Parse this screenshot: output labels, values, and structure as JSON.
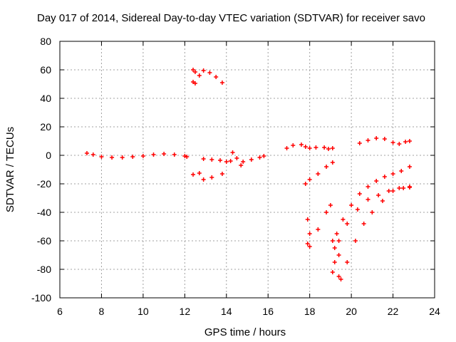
{
  "chart_data": {
    "type": "scatter",
    "title": "Day 017 of 2014, Sidereal Day-to-day VTEC variation (SDTVAR) for receiver savo",
    "xlabel": "GPS time / hours",
    "ylabel": "SDTVAR / TECUs",
    "xlim": [
      6,
      24
    ],
    "ylim": [
      -100,
      80
    ],
    "xticks": [
      6,
      8,
      10,
      12,
      14,
      16,
      18,
      20,
      22,
      24
    ],
    "yticks": [
      -100,
      -80,
      -60,
      -40,
      -20,
      0,
      20,
      40,
      60,
      80
    ],
    "grid": true,
    "marker": "+",
    "color": "#ff0000",
    "series": [
      {
        "values": [
          [
            7.3,
            1.5
          ],
          [
            7.6,
            0.5
          ],
          [
            8.0,
            -1.0
          ],
          [
            8.5,
            -1.5
          ],
          [
            9.0,
            -1.5
          ],
          [
            9.5,
            -1.0
          ],
          [
            10.0,
            -0.5
          ],
          [
            10.5,
            0.5
          ],
          [
            11.0,
            1.0
          ],
          [
            11.5,
            0.5
          ],
          [
            12.0,
            -0.5
          ],
          [
            12.1,
            -1.0
          ],
          [
            12.4,
            60.0
          ],
          [
            12.5,
            58.5
          ],
          [
            12.4,
            51.5
          ],
          [
            12.5,
            50.5
          ],
          [
            12.7,
            56.0
          ],
          [
            12.9,
            59.5
          ],
          [
            13.2,
            58.0
          ],
          [
            13.5,
            55.0
          ],
          [
            13.8,
            51.0
          ],
          [
            12.4,
            -13.5
          ],
          [
            12.7,
            -12.5
          ],
          [
            12.9,
            -17.0
          ],
          [
            13.3,
            -15.5
          ],
          [
            13.8,
            -13.0
          ],
          [
            12.9,
            -2.5
          ],
          [
            13.3,
            -3.0
          ],
          [
            13.7,
            -3.5
          ],
          [
            14.0,
            -4.5
          ],
          [
            14.2,
            -4.0
          ],
          [
            14.3,
            2.0
          ],
          [
            14.5,
            -2.0
          ],
          [
            14.7,
            -7.0
          ],
          [
            14.8,
            -4.5
          ],
          [
            15.2,
            -3.0
          ],
          [
            15.6,
            -1.5
          ],
          [
            15.8,
            -0.5
          ],
          [
            16.9,
            5.0
          ],
          [
            17.2,
            7.0
          ],
          [
            17.6,
            7.5
          ],
          [
            17.8,
            6.0
          ],
          [
            18.0,
            5.0
          ],
          [
            18.3,
            5.5
          ],
          [
            18.7,
            5.5
          ],
          [
            18.9,
            4.5
          ],
          [
            19.1,
            5.0
          ],
          [
            17.8,
            -20.0
          ],
          [
            18.0,
            -17.0
          ],
          [
            18.4,
            -13.0
          ],
          [
            18.8,
            -8.0
          ],
          [
            19.1,
            -5.0
          ],
          [
            17.9,
            -45.0
          ],
          [
            18.0,
            -55.0
          ],
          [
            17.9,
            -62.0
          ],
          [
            18.0,
            -64.0
          ],
          [
            18.4,
            -52.0
          ],
          [
            18.8,
            -40.0
          ],
          [
            19.0,
            -35.0
          ],
          [
            19.1,
            -60.0
          ],
          [
            19.3,
            -55.0
          ],
          [
            19.6,
            -45.0
          ],
          [
            20.0,
            -35.0
          ],
          [
            20.4,
            -27.0
          ],
          [
            20.8,
            -22.0
          ],
          [
            21.2,
            -18.0
          ],
          [
            21.6,
            -15.0
          ],
          [
            22.0,
            -13.0
          ],
          [
            22.4,
            -11.0
          ],
          [
            22.8,
            -8.0
          ],
          [
            19.2,
            -65.0
          ],
          [
            19.4,
            -60.0
          ],
          [
            19.8,
            -48.0
          ],
          [
            20.3,
            -38.0
          ],
          [
            20.8,
            -31.0
          ],
          [
            21.3,
            -28.0
          ],
          [
            21.8,
            -25.0
          ],
          [
            22.3,
            -23.0
          ],
          [
            22.8,
            -22.5
          ],
          [
            19.1,
            -82.0
          ],
          [
            19.2,
            -75.0
          ],
          [
            19.4,
            -70.0
          ],
          [
            19.4,
            -85.0
          ],
          [
            19.5,
            -87.0
          ],
          [
            19.8,
            -75.0
          ],
          [
            20.2,
            -60.0
          ],
          [
            20.6,
            -48.0
          ],
          [
            21.0,
            -40.0
          ],
          [
            21.5,
            -32.0
          ],
          [
            22.0,
            -25.0
          ],
          [
            22.5,
            -23.0
          ],
          [
            22.8,
            -22.0
          ],
          [
            20.4,
            8.5
          ],
          [
            20.8,
            10.5
          ],
          [
            21.2,
            12.0
          ],
          [
            21.6,
            11.5
          ],
          [
            22.0,
            9.0
          ],
          [
            22.3,
            8.0
          ],
          [
            22.6,
            9.5
          ],
          [
            22.8,
            10.0
          ]
        ]
      }
    ]
  }
}
